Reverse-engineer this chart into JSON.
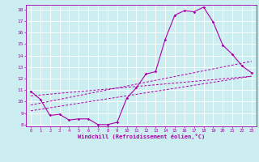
{
  "xlabel": "Windchill (Refroidissement éolien,°C)",
  "bg_color": "#cceef0",
  "line_color": "#aa00aa",
  "grid_color": "#ffffff",
  "line1_x": [
    0,
    1,
    2,
    3,
    4,
    5,
    6,
    7,
    8,
    9,
    10,
    11,
    12,
    13,
    14,
    15,
    16,
    17,
    18,
    19,
    20,
    21,
    22,
    23
  ],
  "line1_y": [
    10.9,
    10.2,
    8.8,
    8.9,
    8.4,
    8.5,
    8.5,
    8.0,
    8.0,
    8.2,
    10.3,
    11.2,
    12.4,
    12.6,
    15.4,
    17.5,
    17.9,
    17.8,
    18.2,
    16.9,
    14.9,
    14.1,
    13.1,
    12.5
  ],
  "line2_x": [
    0,
    23
  ],
  "line2_y": [
    10.5,
    12.2
  ],
  "line3_x": [
    0,
    23
  ],
  "line3_y": [
    9.7,
    13.5
  ],
  "line4_x": [
    0,
    23
  ],
  "line4_y": [
    9.2,
    12.2
  ],
  "xmin": -0.5,
  "xmax": 23.5,
  "ymin": 8,
  "ymax": 18,
  "xticks": [
    0,
    1,
    2,
    3,
    4,
    5,
    6,
    7,
    8,
    9,
    10,
    11,
    12,
    13,
    14,
    15,
    16,
    17,
    18,
    19,
    20,
    21,
    22,
    23
  ],
  "yticks": [
    8,
    9,
    10,
    11,
    12,
    13,
    14,
    15,
    16,
    17,
    18
  ]
}
